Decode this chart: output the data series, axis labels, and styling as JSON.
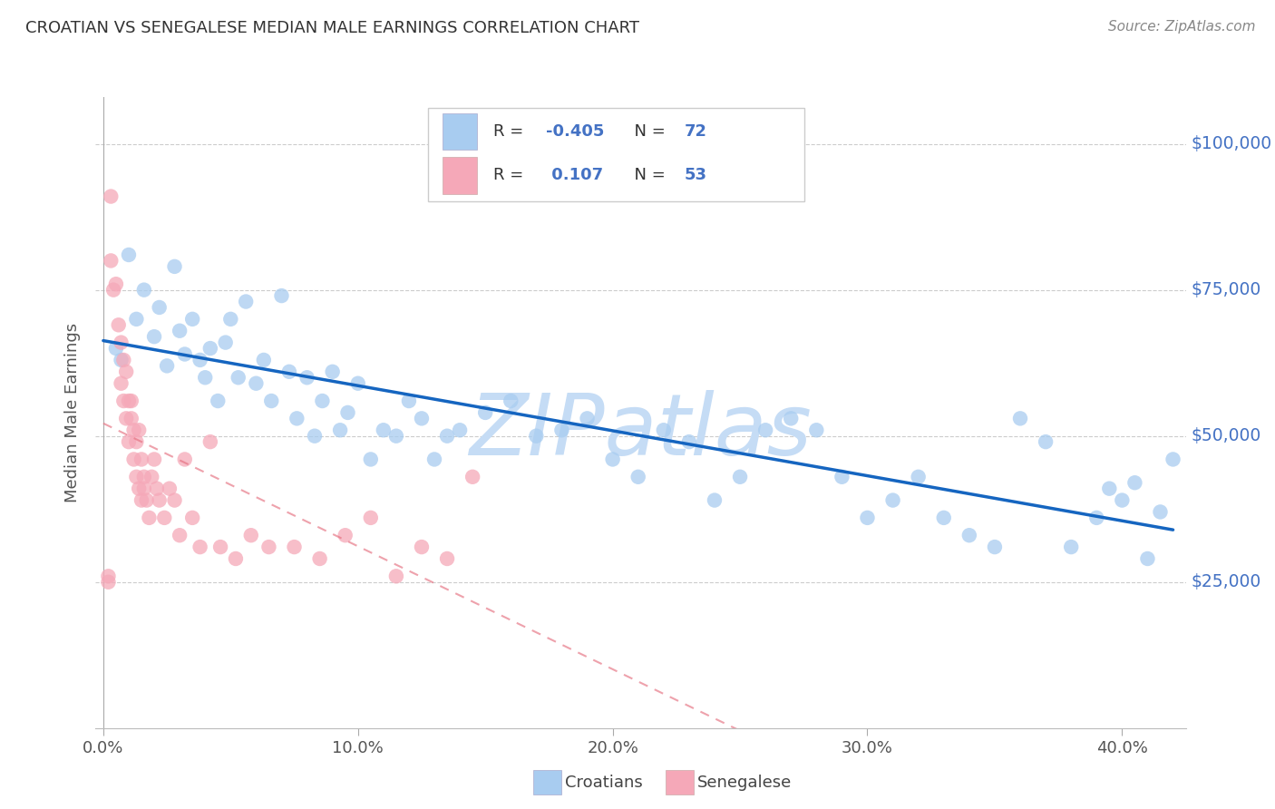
{
  "title": "CROATIAN VS SENEGALESE MEDIAN MALE EARNINGS CORRELATION CHART",
  "source": "Source: ZipAtlas.com",
  "ylabel": "Median Male Earnings",
  "y_tick_labels": [
    "$25,000",
    "$50,000",
    "$75,000",
    "$100,000"
  ],
  "y_tick_values": [
    25000,
    50000,
    75000,
    100000
  ],
  "ylim": [
    0,
    108000
  ],
  "xlim": [
    -0.003,
    0.425
  ],
  "x_tick_labels": [
    "0.0%",
    "10.0%",
    "20.0%",
    "30.0%",
    "40.0%"
  ],
  "x_tick_values": [
    0.0,
    0.1,
    0.2,
    0.3,
    0.4
  ],
  "croatians_color": "#A8CCF0",
  "senegalese_color": "#F5A8B8",
  "croatians_line_color": "#1565C0",
  "senegalese_line_color": "#E57080",
  "legend_croatians_label": "Croatians",
  "legend_senegalese_label": "Senegalese",
  "R_croatians": -0.405,
  "N_croatians": 72,
  "R_senegalese": 0.107,
  "N_senegalese": 53,
  "background_color": "#FFFFFF",
  "grid_color": "#CCCCCC",
  "watermark": "ZIPatlas",
  "watermark_color": "#C5DCF5",
  "axis_label_color": "#4472C4",
  "title_color": "#333333",
  "legend_text_color": "#333333",
  "legend_number_color": "#4472C4",
  "croatians_x": [
    0.005,
    0.007,
    0.01,
    0.013,
    0.016,
    0.02,
    0.022,
    0.025,
    0.028,
    0.03,
    0.032,
    0.035,
    0.038,
    0.04,
    0.042,
    0.045,
    0.048,
    0.05,
    0.053,
    0.056,
    0.06,
    0.063,
    0.066,
    0.07,
    0.073,
    0.076,
    0.08,
    0.083,
    0.086,
    0.09,
    0.093,
    0.096,
    0.1,
    0.105,
    0.11,
    0.115,
    0.12,
    0.125,
    0.13,
    0.135,
    0.14,
    0.15,
    0.16,
    0.17,
    0.18,
    0.19,
    0.2,
    0.21,
    0.22,
    0.23,
    0.24,
    0.25,
    0.26,
    0.27,
    0.28,
    0.29,
    0.3,
    0.31,
    0.32,
    0.33,
    0.34,
    0.35,
    0.36,
    0.37,
    0.38,
    0.39,
    0.395,
    0.4,
    0.405,
    0.41,
    0.415,
    0.42
  ],
  "croatians_y": [
    65000,
    63000,
    81000,
    70000,
    75000,
    67000,
    72000,
    62000,
    79000,
    68000,
    64000,
    70000,
    63000,
    60000,
    65000,
    56000,
    66000,
    70000,
    60000,
    73000,
    59000,
    63000,
    56000,
    74000,
    61000,
    53000,
    60000,
    50000,
    56000,
    61000,
    51000,
    54000,
    59000,
    46000,
    51000,
    50000,
    56000,
    53000,
    46000,
    50000,
    51000,
    54000,
    56000,
    50000,
    51000,
    53000,
    46000,
    43000,
    51000,
    49000,
    39000,
    43000,
    51000,
    53000,
    51000,
    43000,
    36000,
    39000,
    43000,
    36000,
    33000,
    31000,
    53000,
    49000,
    31000,
    36000,
    41000,
    39000,
    42000,
    29000,
    37000,
    46000
  ],
  "senegalese_x": [
    0.002,
    0.003,
    0.004,
    0.005,
    0.006,
    0.007,
    0.007,
    0.008,
    0.008,
    0.009,
    0.009,
    0.01,
    0.01,
    0.011,
    0.011,
    0.012,
    0.012,
    0.013,
    0.013,
    0.014,
    0.014,
    0.015,
    0.015,
    0.016,
    0.016,
    0.017,
    0.018,
    0.019,
    0.02,
    0.021,
    0.022,
    0.024,
    0.026,
    0.028,
    0.03,
    0.032,
    0.035,
    0.038,
    0.042,
    0.046,
    0.052,
    0.058,
    0.065,
    0.075,
    0.085,
    0.095,
    0.105,
    0.115,
    0.125,
    0.135,
    0.145,
    0.002,
    0.003
  ],
  "senegalese_y": [
    25000,
    91000,
    75000,
    76000,
    69000,
    66000,
    59000,
    63000,
    56000,
    61000,
    53000,
    56000,
    49000,
    56000,
    53000,
    51000,
    46000,
    49000,
    43000,
    51000,
    41000,
    39000,
    46000,
    43000,
    41000,
    39000,
    36000,
    43000,
    46000,
    41000,
    39000,
    36000,
    41000,
    39000,
    33000,
    46000,
    36000,
    31000,
    49000,
    31000,
    29000,
    33000,
    31000,
    31000,
    29000,
    33000,
    36000,
    26000,
    31000,
    29000,
    43000,
    26000,
    80000
  ]
}
